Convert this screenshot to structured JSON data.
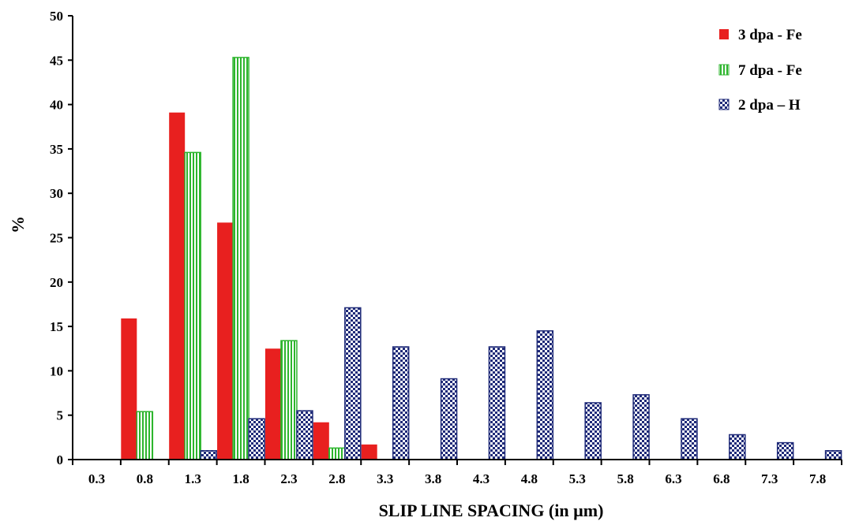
{
  "chart_data": {
    "type": "bar",
    "title": "",
    "xlabel": "SLIP LINE SPACING (in µm)",
    "ylabel": "%",
    "ylim": [
      0,
      50
    ],
    "yticks": [
      "0",
      "5",
      "10",
      "15",
      "20",
      "25",
      "30",
      "35",
      "40",
      "45",
      "50"
    ],
    "categories": [
      "0.3",
      "0.8",
      "1.3",
      "1.8",
      "2.3",
      "2.8",
      "3.3",
      "3.8",
      "4.3",
      "4.8",
      "5.3",
      "5.8",
      "6.3",
      "6.8",
      "7.3",
      "7.8"
    ],
    "grid": false,
    "legend_position": "top-right",
    "series": [
      {
        "name": "3 dpa - Fe",
        "pattern": "solid",
        "color": "#e8201f",
        "values": [
          0,
          15.9,
          39.1,
          26.7,
          12.5,
          4.2,
          1.7,
          0,
          0,
          0,
          0,
          0,
          0,
          0,
          0,
          0
        ]
      },
      {
        "name": "7 dpa - Fe",
        "pattern": "vertical-stripes",
        "color": "#2db52d",
        "values": [
          0,
          5.4,
          34.6,
          45.3,
          13.4,
          1.3,
          0,
          0,
          0,
          0,
          0,
          0,
          0,
          0,
          0,
          0
        ]
      },
      {
        "name": "2 dpa – H",
        "pattern": "checker",
        "color": "#1f2a78",
        "values": [
          0,
          0,
          1.0,
          4.6,
          5.5,
          17.1,
          12.7,
          9.1,
          12.7,
          14.5,
          6.4,
          7.3,
          4.6,
          2.8,
          1.9,
          1.0
        ]
      }
    ]
  }
}
